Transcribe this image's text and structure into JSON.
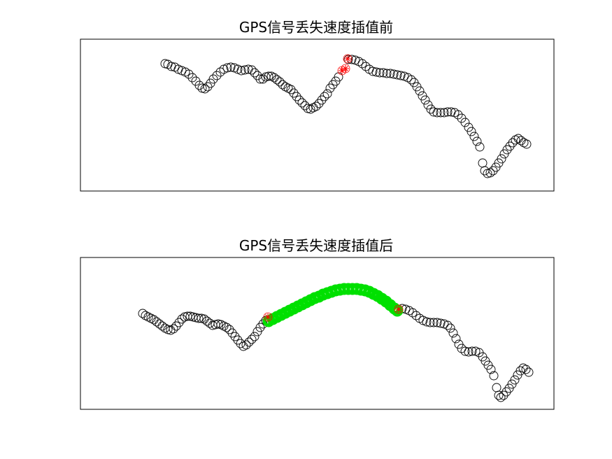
{
  "chart_data": [
    {
      "type": "scatter",
      "title": "GPS信号丢失速度插值前",
      "xlabel": "",
      "ylabel": "",
      "axis_ticks": false,
      "grid": false,
      "series": [
        {
          "marker": "circle",
          "color": "#000000",
          "points": [
            [
              236,
              91
            ],
            [
              240,
              92
            ],
            [
              245,
              95
            ],
            [
              250,
              96
            ],
            [
              255,
              99
            ],
            [
              260,
              101
            ],
            [
              265,
              103
            ],
            [
              270,
              106
            ],
            [
              275,
              111
            ],
            [
              280,
              116
            ],
            [
              285,
              122
            ],
            [
              289,
              126
            ],
            [
              293,
              127
            ],
            [
              297,
              124
            ],
            [
              301,
              119
            ],
            [
              305,
              113
            ],
            [
              310,
              108
            ],
            [
              315,
              103
            ],
            [
              320,
              99
            ],
            [
              325,
              97
            ],
            [
              330,
              96
            ],
            [
              335,
              97
            ],
            [
              340,
              99
            ],
            [
              345,
              101
            ],
            [
              350,
              100
            ],
            [
              355,
              99
            ],
            [
              360,
              100
            ],
            [
              364,
              104
            ],
            [
              368,
              108
            ],
            [
              372,
              113
            ],
            [
              376,
              113
            ],
            [
              380,
              110
            ],
            [
              384,
              109
            ],
            [
              388,
              109
            ],
            [
              392,
              111
            ],
            [
              396,
              114
            ],
            [
              400,
              117
            ],
            [
              404,
              121
            ],
            [
              408,
              124
            ],
            [
              412,
              126
            ],
            [
              416,
              128
            ],
            [
              420,
              133
            ],
            [
              424,
              138
            ],
            [
              428,
              143
            ],
            [
              432,
              147
            ],
            [
              436,
              151
            ],
            [
              440,
              155
            ],
            [
              444,
              156
            ],
            [
              448,
              154
            ],
            [
              452,
              152
            ],
            [
              456,
              148
            ],
            [
              460,
              143
            ],
            [
              464,
              138
            ],
            [
              468,
              134
            ],
            [
              472,
              126
            ],
            [
              476,
              121
            ],
            [
              480,
              116
            ],
            [
              484,
              110
            ]
          ]
        },
        {
          "marker": "circle",
          "color": "#000000",
          "points": [
            [
              498,
              85
            ],
            [
              503,
              85
            ],
            [
              508,
              86
            ],
            [
              513,
              88
            ],
            [
              518,
              91
            ],
            [
              523,
              95
            ],
            [
              528,
              99
            ],
            [
              533,
              102
            ],
            [
              538,
              103
            ],
            [
              543,
              104
            ],
            [
              548,
              104
            ],
            [
              553,
              105
            ],
            [
              558,
              105
            ],
            [
              563,
              106
            ],
            [
              568,
              107
            ],
            [
              573,
              108
            ],
            [
              578,
              109
            ],
            [
              583,
              111
            ],
            [
              588,
              114
            ],
            [
              592,
              118
            ],
            [
              596,
              124
            ],
            [
              600,
              130
            ],
            [
              604,
              137
            ],
            [
              608,
              143
            ],
            [
              612,
              150
            ],
            [
              616,
              156
            ],
            [
              620,
              160
            ],
            [
              625,
              161
            ],
            [
              630,
              161
            ],
            [
              635,
              161
            ],
            [
              640,
              160
            ],
            [
              645,
              160
            ],
            [
              650,
              161
            ],
            [
              655,
              164
            ],
            [
              660,
              169
            ],
            [
              665,
              175
            ],
            [
              670,
              182
            ],
            [
              674,
              188
            ],
            [
              678,
              195
            ],
            [
              682,
              202
            ],
            [
              686,
              210
            ],
            [
              690,
              233
            ],
            [
              693,
              244
            ],
            [
              697,
              248
            ],
            [
              701,
              247
            ],
            [
              705,
              244
            ],
            [
              709,
              239
            ],
            [
              713,
              233
            ],
            [
              717,
              227
            ],
            [
              721,
              220
            ],
            [
              725,
              214
            ],
            [
              729,
              209
            ],
            [
              733,
              204
            ],
            [
              737,
              200
            ],
            [
              741,
              198
            ],
            [
              745,
              201
            ],
            [
              749,
              204
            ],
            [
              753,
              206
            ]
          ]
        },
        {
          "marker": "asterisk",
          "color": "#ff0000",
          "points": [
            [
              489,
              101
            ],
            [
              494,
              98
            ],
            [
              497,
              84
            ]
          ]
        }
      ]
    },
    {
      "type": "scatter",
      "title": "GPS信号丢失速度插值后",
      "xlabel": "",
      "ylabel": "",
      "axis_ticks": false,
      "grid": false,
      "series": [
        {
          "marker": "circle",
          "color": "#000000",
          "points": [
            [
              204,
              448
            ],
            [
              208,
              451
            ],
            [
              212,
              453
            ],
            [
              216,
              455
            ],
            [
              220,
              457
            ],
            [
              224,
              460
            ],
            [
              228,
              463
            ],
            [
              232,
              466
            ],
            [
              236,
              469
            ],
            [
              240,
              471
            ],
            [
              244,
              472
            ],
            [
              248,
              470
            ],
            [
              252,
              466
            ],
            [
              256,
              461
            ],
            [
              260,
              456
            ],
            [
              264,
              453
            ],
            [
              268,
              452
            ],
            [
              272,
              452
            ],
            [
              276,
              453
            ],
            [
              280,
              454
            ],
            [
              284,
              455
            ],
            [
              288,
              455
            ],
            [
              292,
              456
            ],
            [
              296,
              459
            ],
            [
              300,
              462
            ],
            [
              304,
              465
            ],
            [
              308,
              464
            ],
            [
              312,
              463
            ],
            [
              316,
              464
            ],
            [
              320,
              466
            ],
            [
              324,
              468
            ],
            [
              328,
              471
            ],
            [
              332,
              476
            ],
            [
              336,
              481
            ],
            [
              340,
              486
            ],
            [
              344,
              491
            ],
            [
              348,
              495
            ],
            [
              352,
              493
            ],
            [
              356,
              489
            ],
            [
              360,
              485
            ],
            [
              364,
              481
            ],
            [
              368,
              474
            ],
            [
              372,
              468
            ],
            [
              376,
              463
            ],
            [
              380,
              458
            ]
          ]
        },
        {
          "marker": "circle",
          "color": "#000000",
          "points": [
            [
              575,
              441
            ],
            [
              580,
              442
            ],
            [
              585,
              444
            ],
            [
              590,
              447
            ],
            [
              595,
              451
            ],
            [
              600,
              455
            ],
            [
              605,
              458
            ],
            [
              610,
              460
            ],
            [
              615,
              461
            ],
            [
              620,
              461
            ],
            [
              625,
              461
            ],
            [
              630,
              462
            ],
            [
              635,
              463
            ],
            [
              640,
              465
            ],
            [
              644,
              469
            ],
            [
              648,
              476
            ],
            [
              652,
              484
            ],
            [
              656,
              492
            ],
            [
              660,
              498
            ],
            [
              665,
              502
            ],
            [
              670,
              503
            ],
            [
              675,
              502
            ],
            [
              680,
              502
            ],
            [
              685,
              504
            ],
            [
              690,
              510
            ],
            [
              694,
              516
            ],
            [
              698,
              522
            ],
            [
              702,
              528
            ],
            [
              706,
              537
            ],
            [
              710,
              554
            ],
            [
              713,
              565
            ],
            [
              716,
              568
            ],
            [
              720,
              565
            ],
            [
              724,
              560
            ],
            [
              728,
              555
            ],
            [
              732,
              549
            ],
            [
              736,
              543
            ],
            [
              740,
              536
            ],
            [
              744,
              530
            ],
            [
              748,
              526
            ],
            [
              752,
              528
            ],
            [
              756,
              532
            ]
          ]
        },
        {
          "marker": "circle",
          "color": "#00e000",
          "points": [
            [
              384,
              459
            ],
            [
              390,
              456
            ],
            [
              396,
              453
            ],
            [
              402,
              450
            ],
            [
              408,
              447
            ],
            [
              414,
              444
            ],
            [
              420,
              441
            ],
            [
              426,
              438
            ],
            [
              432,
              435
            ],
            [
              438,
              432
            ],
            [
              444,
              429
            ],
            [
              450,
              426
            ],
            [
              456,
              424
            ],
            [
              462,
              421
            ],
            [
              468,
              419
            ],
            [
              474,
              417
            ],
            [
              480,
              415
            ],
            [
              486,
              414
            ],
            [
              492,
              413
            ],
            [
              498,
              413
            ],
            [
              504,
              413
            ],
            [
              510,
              413
            ],
            [
              516,
              414
            ],
            [
              522,
              415
            ],
            [
              528,
              417
            ],
            [
              534,
              420
            ],
            [
              540,
              423
            ],
            [
              546,
              427
            ],
            [
              552,
              431
            ],
            [
              558,
              436
            ],
            [
              564,
              441
            ],
            [
              568,
              444
            ]
          ]
        },
        {
          "marker": "asterisk",
          "color": "#ff0000",
          "points": [
            [
              383,
              453
            ],
            [
              570,
              442
            ]
          ]
        }
      ]
    }
  ]
}
